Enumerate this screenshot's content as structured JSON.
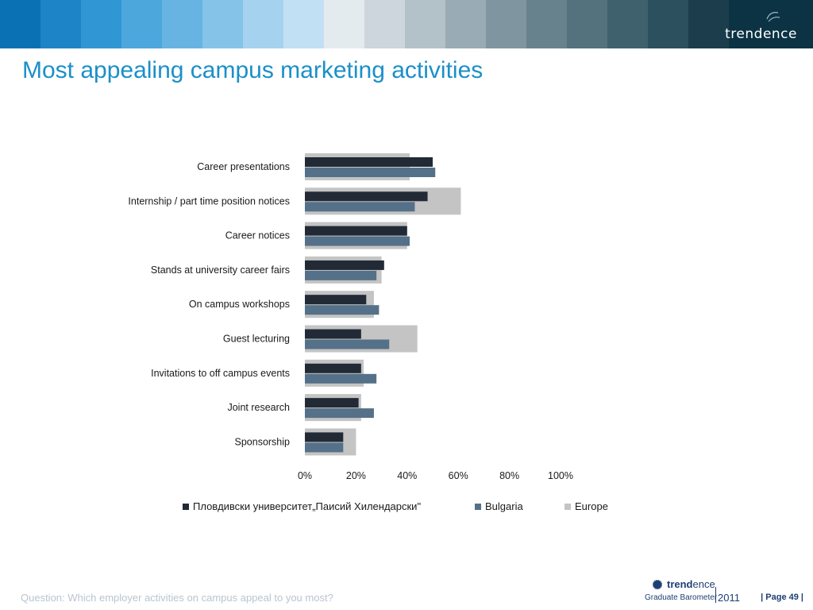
{
  "header": {
    "stripe_colors": [
      "#0a71b4",
      "#1d84c7",
      "#3197d4",
      "#4ca7dd",
      "#67b4e2",
      "#86c3e9",
      "#a5d2ef",
      "#c2e0f4",
      "#e4ebef",
      "#ccd6dc",
      "#b3c1c8",
      "#99abb4",
      "#7f96a0",
      "#67828d",
      "#53727d",
      "#3e616d",
      "#2c505d",
      "#1c3d4c",
      "#0c3343"
    ],
    "brand": "trendence"
  },
  "title": "Most appealing campus marketing activities",
  "chart_data": {
    "type": "bar",
    "orientation": "horizontal",
    "categories": [
      "Career presentations",
      "Internship / part time position notices",
      "Career notices",
      "Stands at university career fairs",
      "On campus workshops",
      "Guest lecturing",
      "Invitations to off campus events",
      "Joint research",
      "Sponsorship"
    ],
    "series": [
      {
        "name": "Пловдивски университет„Паисий Хилендарски\"",
        "color": "#222a36",
        "values": [
          50,
          48,
          40,
          31,
          24,
          22,
          22,
          21,
          15
        ]
      },
      {
        "name": "Bulgaria",
        "color": "#557189",
        "values": [
          51,
          43,
          41,
          28,
          29,
          33,
          28,
          27,
          15
        ]
      },
      {
        "name": "Europe",
        "color": "#c4c4c4",
        "values": [
          41,
          61,
          40,
          30,
          27,
          44,
          23,
          22,
          20
        ]
      }
    ],
    "xlim": [
      0,
      100
    ],
    "xticks": [
      "0%",
      "20%",
      "40%",
      "60%",
      "80%",
      "100%"
    ],
    "legend_position": "bottom",
    "grid": false
  },
  "legend": {
    "items": [
      "Пловдивски университет„Паисий Хилендарски\"",
      "Bulgaria",
      "Europe"
    ]
  },
  "footer": {
    "question": "Question: Which employer activities on campus appeal to you most?",
    "logo_word_bold": "trend",
    "logo_word_rest": "ence",
    "logo_sub": "Graduate Barometer",
    "logo_year": "2011",
    "page_label": "| Page 49 |"
  }
}
